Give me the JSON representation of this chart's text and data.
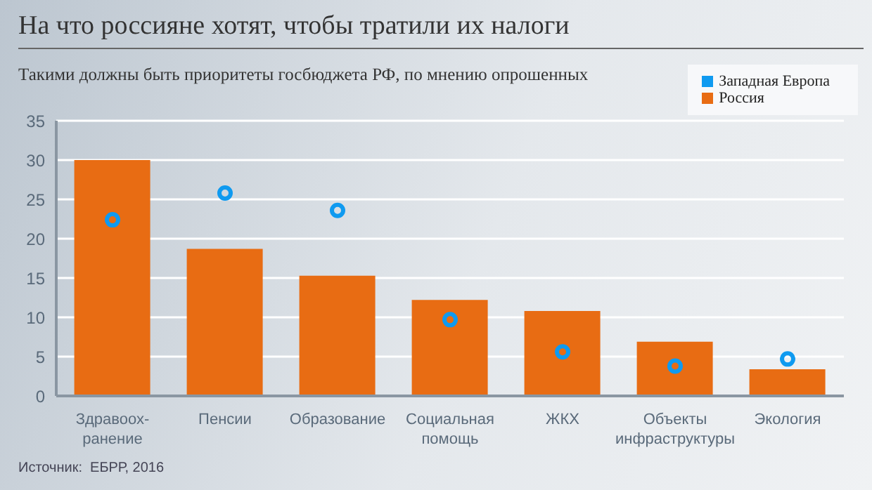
{
  "chart_data": {
    "type": "bar",
    "title": "На что россияне хотят, чтобы тратили их налоги",
    "subtitle": "Такими должны быть приоритеты госбюджета РФ, по мнению опрошенных",
    "categories": [
      "Здравоох-\nранение",
      "Пенсии",
      "Образование",
      "Социальная\nпомощь",
      "ЖКХ",
      "Объекты\nинфраструктуры",
      "Экология"
    ],
    "series": [
      {
        "name": "Россия",
        "color": "#e86c13",
        "values": [
          30,
          18.7,
          15.3,
          12.2,
          10.8,
          6.9,
          3.4
        ]
      },
      {
        "name": "Западная Европа",
        "type": "scatter",
        "color": "#0f9af0",
        "values": [
          22.4,
          25.8,
          23.6,
          9.7,
          5.6,
          3.8,
          4.7
        ]
      }
    ],
    "ylim": [
      0,
      35
    ],
    "yticks": [
      0,
      5,
      10,
      15,
      20,
      25,
      30,
      35
    ],
    "grid": "y",
    "legend": "top right",
    "marker": "circle",
    "annotations": [
      "Источник:  ЕБРР, 2016"
    ]
  }
}
